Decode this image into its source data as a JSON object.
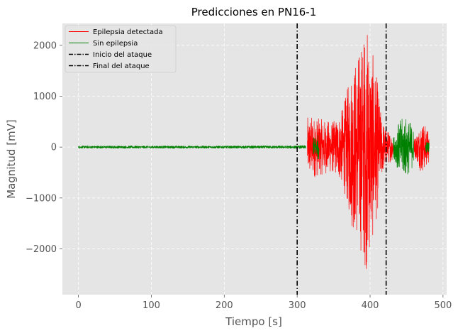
{
  "chart_data": {
    "type": "line",
    "title": "Predicciones en PN16-1",
    "xlabel": "Tiempo [s]",
    "ylabel": "Magnitud [mV]",
    "xlim": [
      -22,
      505
    ],
    "ylim": [
      -2900,
      2430
    ],
    "x_ticks": [
      0,
      100,
      200,
      300,
      400,
      500
    ],
    "y_ticks": [
      -2000,
      -1000,
      0,
      1000,
      2000
    ],
    "x_tick_labels": [
      "0",
      "100",
      "200",
      "300",
      "400",
      "500"
    ],
    "y_tick_labels": [
      "−2000",
      "−1000",
      "0",
      "1000",
      "2000"
    ],
    "grid": true,
    "legend_position": "top-left",
    "series": [
      {
        "name": "Epilepsia detectada",
        "color": "#ff0000",
        "segments": [
          [
            {
              "t": 314,
              "amp": 580
            },
            {
              "t": 320,
              "amp": 620
            },
            {
              "t": 330,
              "amp": 560
            },
            {
              "t": 340,
              "amp": 520
            },
            {
              "t": 352,
              "amp": 520
            },
            {
              "t": 362,
              "amp": 750
            },
            {
              "t": 368,
              "amp": 1100
            },
            {
              "t": 375,
              "amp": 1600
            },
            {
              "t": 382,
              "amp": 1800
            },
            {
              "t": 388,
              "amp": 2100
            },
            {
              "t": 395,
              "amp": 2450
            },
            {
              "t": 400,
              "amp": 2050
            },
            {
              "t": 405,
              "amp": 1750
            },
            {
              "t": 410,
              "amp": 1300
            },
            {
              "t": 415,
              "amp": 650
            },
            {
              "t": 420,
              "amp": 420
            },
            {
              "t": 425,
              "amp": 320
            },
            {
              "t": 432,
              "amp": 250
            }
          ],
          [
            {
              "t": 460,
              "amp": 150
            },
            {
              "t": 466,
              "amp": 340
            },
            {
              "t": 470,
              "amp": 520
            },
            {
              "t": 476,
              "amp": 420
            },
            {
              "t": 481,
              "amp": 300
            }
          ]
        ]
      },
      {
        "name": "Sin epilepsia",
        "color": "#008000",
        "segments": [
          [
            {
              "t": 0,
              "amp": 25
            },
            {
              "t": 100,
              "amp": 25
            },
            {
              "t": 200,
              "amp": 25
            },
            {
              "t": 300,
              "amp": 28
            },
            {
              "t": 312,
              "amp": 35
            }
          ],
          [
            {
              "t": 322,
              "amp": 200
            },
            {
              "t": 330,
              "amp": 250
            }
          ],
          [
            {
              "t": 432,
              "amp": 200
            },
            {
              "t": 440,
              "amp": 520
            },
            {
              "t": 448,
              "amp": 600
            },
            {
              "t": 455,
              "amp": 500
            },
            {
              "t": 460,
              "amp": 350
            }
          ],
          [
            {
              "t": 476,
              "amp": 120
            },
            {
              "t": 481,
              "amp": 100
            }
          ]
        ]
      },
      {
        "name": "Inicio del ataque",
        "color": "#000000",
        "style": "dash-dot",
        "x": 300
      },
      {
        "name": "Final del ataque",
        "color": "#000000",
        "style": "dash-dot",
        "x": 422
      }
    ]
  }
}
